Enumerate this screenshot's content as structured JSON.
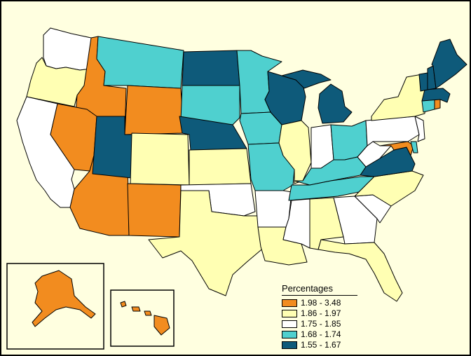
{
  "legend": {
    "title": "Percentages",
    "items": [
      {
        "label": "1.98 - 3.48",
        "color": "#f28c1f"
      },
      {
        "label": "1.86 - 1.97",
        "color": "#ffffb3"
      },
      {
        "label": "1.75 - 1.85",
        "color": "#ffffff"
      },
      {
        "label": "1.68 - 1.74",
        "color": "#4fd0cf"
      },
      {
        "label": "1.55 - 1.67",
        "color": "#0e5a7a"
      }
    ]
  },
  "background_color": "#ffffe0",
  "states": {
    "WA": "1.75 - 1.85",
    "OR": "1.86 - 1.97",
    "CA": "1.75 - 1.85",
    "ID": "1.98 - 3.48",
    "NV": "1.98 - 3.48",
    "AZ": "1.98 - 3.48",
    "MT": "1.68 - 1.74",
    "WY": "1.98 - 3.48",
    "UT": "1.55 - 1.67",
    "CO": "1.86 - 1.97",
    "NM": "1.98 - 3.48",
    "ND": "1.55 - 1.67",
    "SD": "1.68 - 1.74",
    "NE": "1.55 - 1.67",
    "KS": "1.86 - 1.97",
    "OK": "1.75 - 1.85",
    "TX": "1.86 - 1.97",
    "MN": "1.68 - 1.74",
    "IA": "1.68 - 1.74",
    "MO": "1.68 - 1.74",
    "AR": "1.75 - 1.85",
    "LA": "1.86 - 1.97",
    "WI": "1.55 - 1.67",
    "IL": "1.86 - 1.97",
    "MI": "1.55 - 1.67",
    "IN": "1.75 - 1.85",
    "OH": "1.68 - 1.74",
    "KY": "1.68 - 1.74",
    "TN": "1.68 - 1.74",
    "MS": "1.75 - 1.85",
    "AL": "1.86 - 1.97",
    "GA": "1.75 - 1.85",
    "FL": "1.86 - 1.97",
    "SC": "1.75 - 1.85",
    "NC": "1.86 - 1.97",
    "VA": "1.55 - 1.67",
    "WV": "1.75 - 1.85",
    "MD": "1.98 - 3.48",
    "DE": "1.68 - 1.74",
    "PA": "1.75 - 1.85",
    "NJ": "1.75 - 1.85",
    "NY": "1.86 - 1.97",
    "CT": "1.68 - 1.74",
    "RI": "1.98 - 3.48",
    "MA": "1.55 - 1.67",
    "VT": "1.55 - 1.67",
    "NH": "1.55 - 1.67",
    "ME": "1.55 - 1.67",
    "AK": "1.98 - 3.48",
    "HI": "1.98 - 3.48"
  }
}
